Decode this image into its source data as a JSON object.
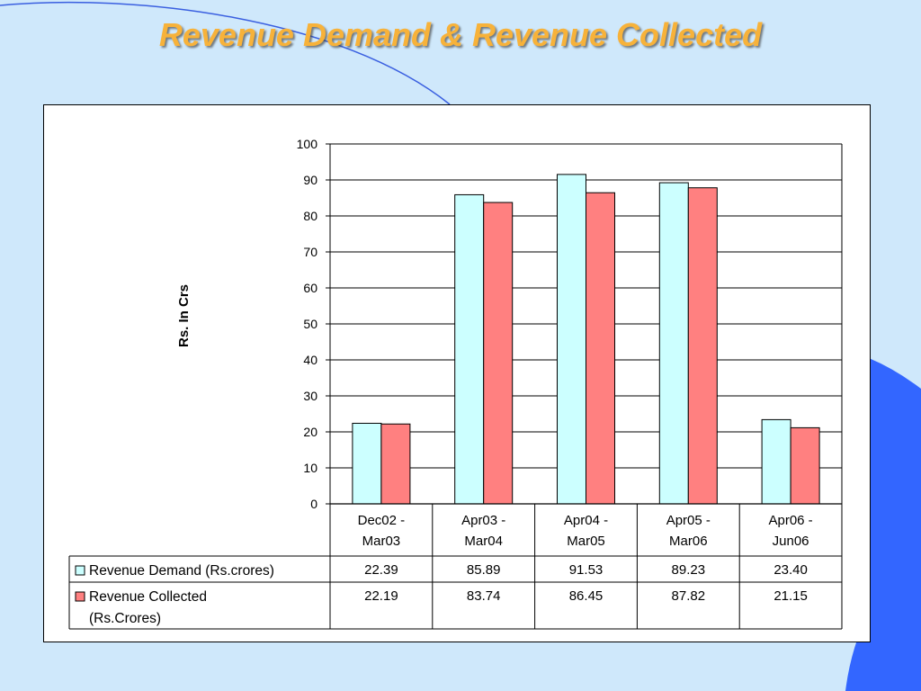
{
  "slide": {
    "title": "Revenue Demand & Revenue Collected"
  },
  "colors": {
    "background": "#cfe8fb",
    "title": "#f7b23a",
    "accent_shape": "#3366ff",
    "accent_line": "#3a5fe0",
    "demand_fill": "#ccffff",
    "collected_fill": "#ff8080"
  },
  "chart_data": {
    "type": "bar",
    "title": "",
    "xlabel": "",
    "ylabel": "Rs. In Crs",
    "ylim": [
      0,
      100
    ],
    "ytick_step": 10,
    "grid": true,
    "legend": "data-table",
    "categories": [
      [
        "Dec02 -",
        "Mar03"
      ],
      [
        "Apr03 -",
        "Mar04"
      ],
      [
        "Apr04 -",
        "Mar05"
      ],
      [
        "Apr05 -",
        "Mar06"
      ],
      [
        "Apr06 -",
        "Jun06"
      ]
    ],
    "series": [
      {
        "name": "Revenue  Demand (Rs.crores)",
        "name_lines": [
          "Revenue  Demand (Rs.crores)"
        ],
        "color": "#ccffff",
        "values": [
          22.39,
          85.89,
          91.53,
          89.23,
          23.4
        ],
        "labels": [
          "22.39",
          "85.89",
          "91.53",
          "89.23",
          "23.40"
        ]
      },
      {
        "name": "Revenue Collected (Rs.Crores)",
        "name_lines": [
          "Revenue Collected",
          "(Rs.Crores)"
        ],
        "color": "#ff8080",
        "values": [
          22.19,
          83.74,
          86.45,
          87.82,
          21.15
        ],
        "labels": [
          "22.19",
          "83.74",
          "86.45",
          "87.82",
          "21.15"
        ]
      }
    ]
  }
}
